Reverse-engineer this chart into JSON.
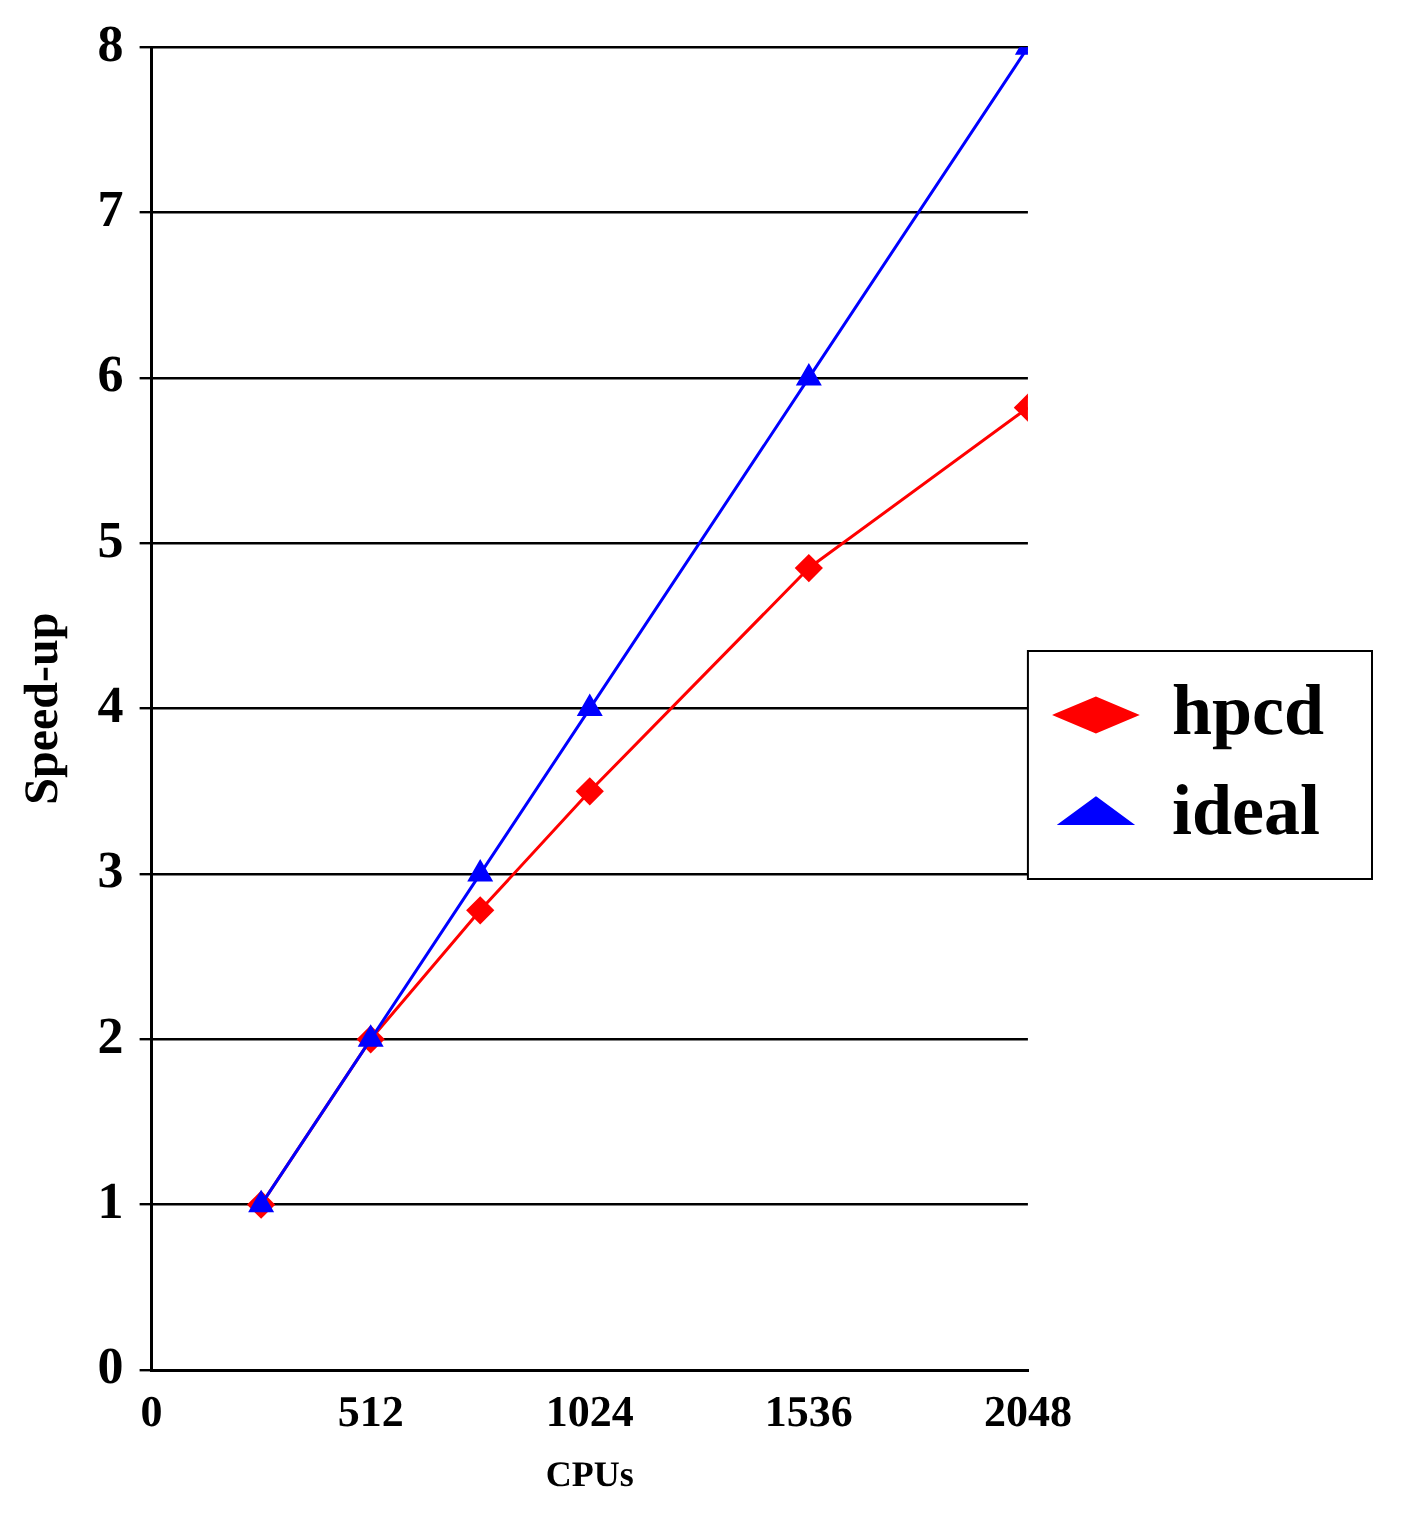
{
  "chart_data": {
    "type": "line",
    "xlabel": "CPUs",
    "ylabel": "Speed-up",
    "x": [
      256,
      512,
      768,
      1024,
      1536,
      2048
    ],
    "series": [
      {
        "name": "hpcd",
        "color": "#ff0000",
        "marker": "diamond",
        "values": [
          1,
          2,
          2.78,
          3.5,
          4.85,
          5.82
        ]
      },
      {
        "name": "ideal",
        "color": "#0000ff",
        "marker": "triangle",
        "values": [
          1,
          2,
          3,
          4,
          6,
          8
        ]
      }
    ],
    "xlim": [
      0,
      2048
    ],
    "xticks": [
      0,
      512,
      1024,
      1536,
      2048
    ],
    "ylim": [
      0,
      8
    ],
    "yticks": [
      0,
      1,
      2,
      3,
      4,
      5,
      6,
      7,
      8
    ],
    "grid": "y",
    "legend": "right",
    "line_style": "solid"
  }
}
